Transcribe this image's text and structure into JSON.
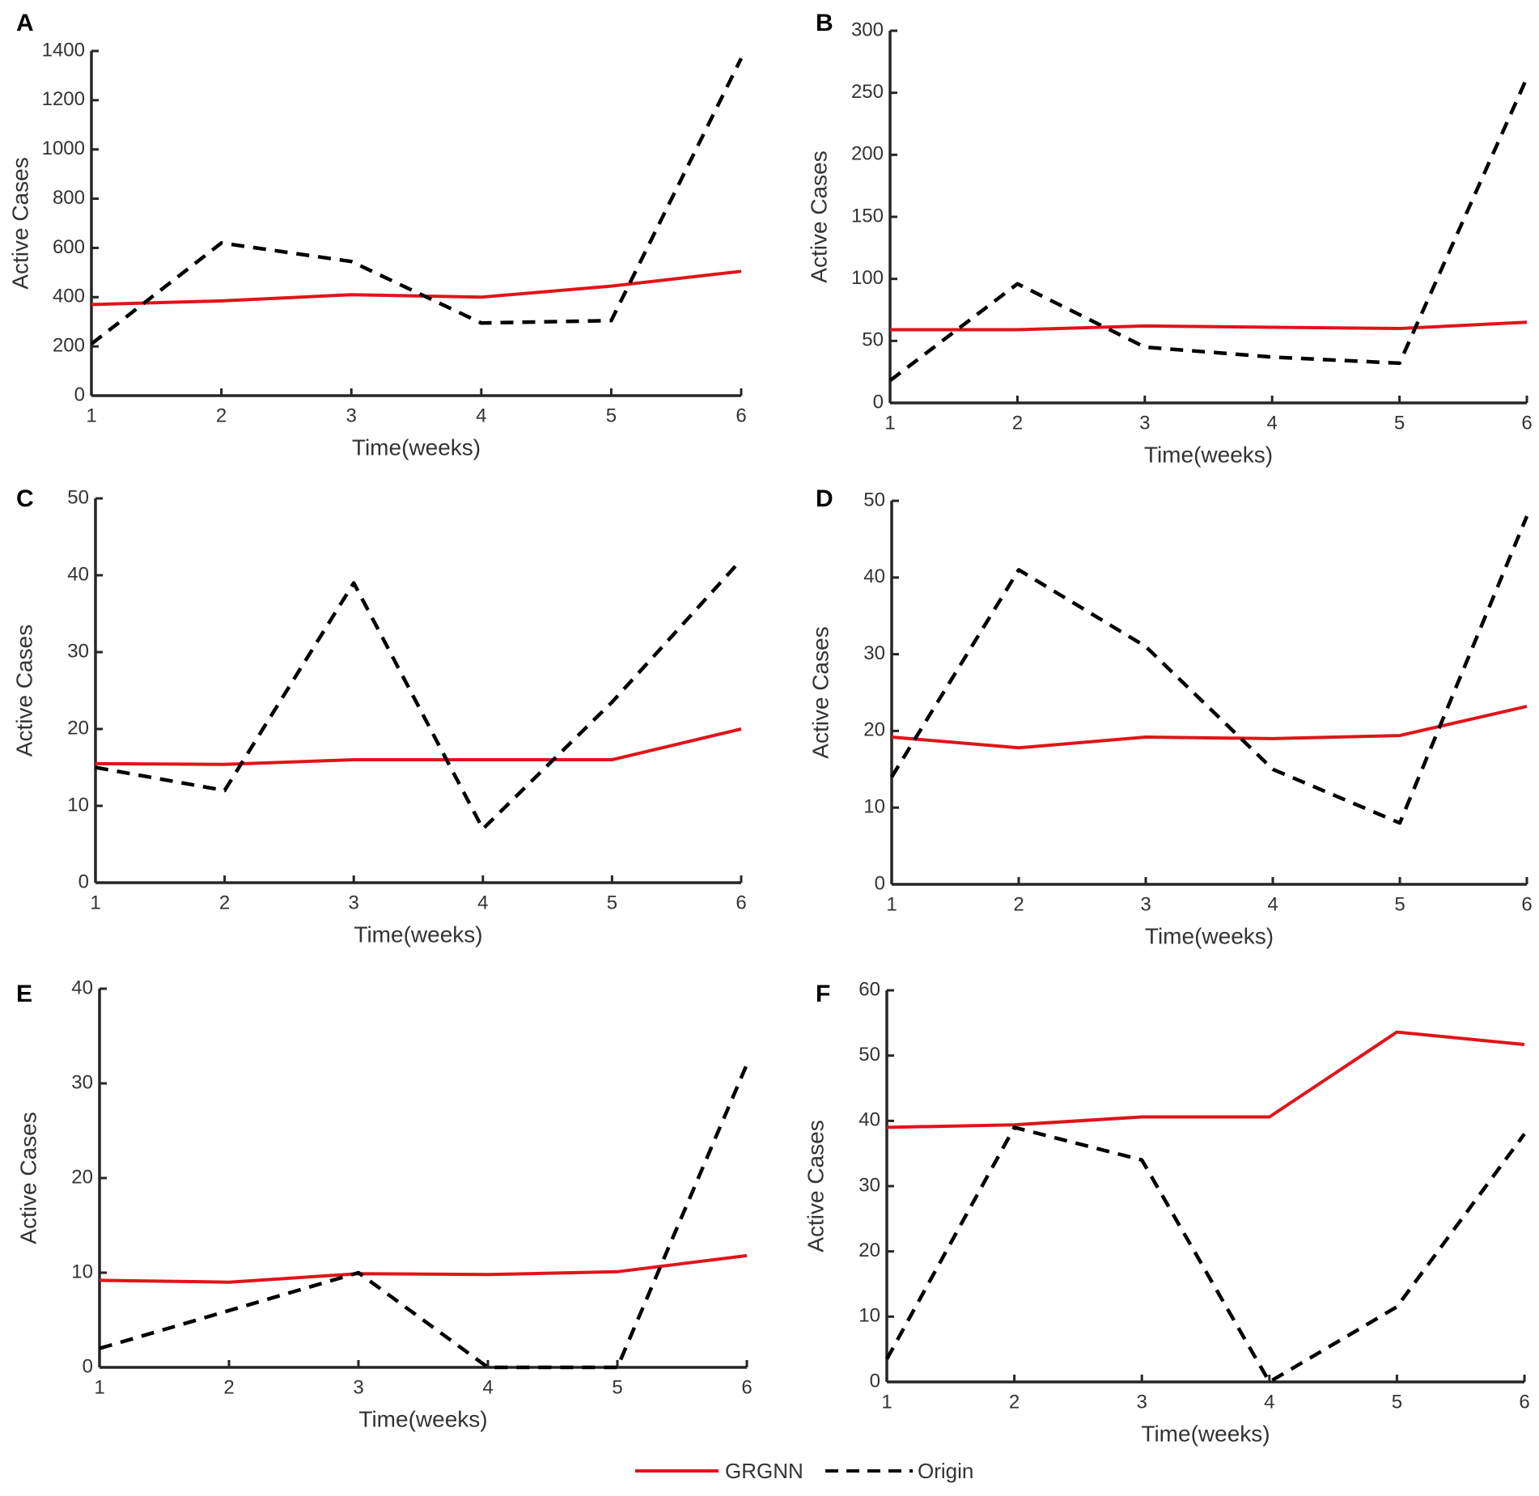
{
  "legend": {
    "grgnn_label": "GRGNN",
    "origin_label": "Origin"
  },
  "colors": {
    "grgnn": "#e0141a",
    "origin": "#000000",
    "axis": "#262626",
    "text": "#333333"
  },
  "chart_data": [
    {
      "type": "line",
      "panel": "A",
      "xlabel": "Time(weeks)",
      "ylabel": "Active Cases",
      "xlim": [
        1,
        6
      ],
      "ylim": [
        0,
        1400
      ],
      "xticks": [
        1,
        2,
        3,
        4,
        5,
        6
      ],
      "yticks": [
        0,
        200,
        400,
        600,
        800,
        1000,
        1200,
        1400
      ],
      "x": [
        1,
        2,
        3,
        4,
        5,
        6
      ],
      "series": [
        {
          "name": "GRGNN",
          "values": [
            370,
            385,
            410,
            400,
            445,
            505
          ]
        },
        {
          "name": "Origin",
          "values": [
            210,
            620,
            545,
            295,
            305,
            1370
          ]
        }
      ]
    },
    {
      "type": "line",
      "panel": "B",
      "xlabel": "Time(weeks)",
      "ylabel": "Active Cases",
      "xlim": [
        1,
        6
      ],
      "ylim": [
        0,
        300
      ],
      "xticks": [
        1,
        2,
        3,
        4,
        5,
        6
      ],
      "yticks": [
        0,
        50,
        100,
        150,
        200,
        250,
        300
      ],
      "x": [
        1,
        2,
        3,
        4,
        5,
        6
      ],
      "series": [
        {
          "name": "GRGNN",
          "values": [
            59,
            59,
            62,
            61,
            60,
            65
          ]
        },
        {
          "name": "Origin",
          "values": [
            18,
            96,
            45,
            37,
            32,
            262
          ]
        }
      ]
    },
    {
      "type": "line",
      "panel": "C",
      "xlabel": "Time(weeks)",
      "ylabel": "Active Cases",
      "xlim": [
        1,
        6
      ],
      "ylim": [
        0,
        50
      ],
      "xticks": [
        1,
        2,
        3,
        4,
        5,
        6
      ],
      "yticks": [
        0,
        10,
        20,
        30,
        40,
        50
      ],
      "x": [
        1,
        2,
        3,
        4,
        5,
        6
      ],
      "series": [
        {
          "name": "GRGNN",
          "values": [
            15.5,
            15.4,
            16,
            16,
            16,
            20
          ]
        },
        {
          "name": "Origin",
          "values": [
            15,
            12,
            39,
            7,
            23.5,
            42
          ]
        }
      ]
    },
    {
      "type": "line",
      "panel": "D",
      "xlabel": "Time(weeks)",
      "ylabel": "Active Cases",
      "xlim": [
        1,
        6
      ],
      "ylim": [
        0,
        50
      ],
      "xticks": [
        1,
        2,
        3,
        4,
        5,
        6
      ],
      "yticks": [
        0,
        10,
        20,
        30,
        40,
        50
      ],
      "x": [
        1,
        2,
        3,
        4,
        5,
        6
      ],
      "series": [
        {
          "name": "GRGNN",
          "values": [
            19.2,
            17.8,
            19.2,
            19,
            19.4,
            23.2
          ]
        },
        {
          "name": "Origin",
          "values": [
            14,
            41,
            31,
            15,
            8,
            48
          ]
        }
      ]
    },
    {
      "type": "line",
      "panel": "E",
      "xlabel": "Time(weeks)",
      "ylabel": "Active Cases",
      "xlim": [
        1,
        6
      ],
      "ylim": [
        0,
        40
      ],
      "xticks": [
        1,
        2,
        3,
        4,
        5,
        6
      ],
      "yticks": [
        0,
        10,
        20,
        30,
        40
      ],
      "x": [
        1,
        2,
        3,
        4,
        5,
        6
      ],
      "series": [
        {
          "name": "GRGNN",
          "values": [
            9.2,
            9,
            9.9,
            9.8,
            10.1,
            11.8
          ]
        },
        {
          "name": "Origin",
          "values": [
            2,
            6,
            10,
            0,
            0,
            32
          ]
        }
      ]
    },
    {
      "type": "line",
      "panel": "F",
      "xlabel": "Time(weeks)",
      "ylabel": "Active Cases",
      "xlim": [
        1,
        6
      ],
      "ylim": [
        0,
        60
      ],
      "xticks": [
        1,
        2,
        3,
        4,
        5,
        6
      ],
      "yticks": [
        0,
        10,
        20,
        30,
        40,
        50,
        60
      ],
      "x": [
        1,
        2,
        3,
        4,
        5,
        6
      ],
      "series": [
        {
          "name": "GRGNN",
          "values": [
            39,
            39.4,
            40.6,
            40.6,
            53.6,
            51.7
          ]
        },
        {
          "name": "Origin",
          "values": [
            3.5,
            39,
            34,
            0,
            11.5,
            38
          ]
        }
      ]
    }
  ]
}
